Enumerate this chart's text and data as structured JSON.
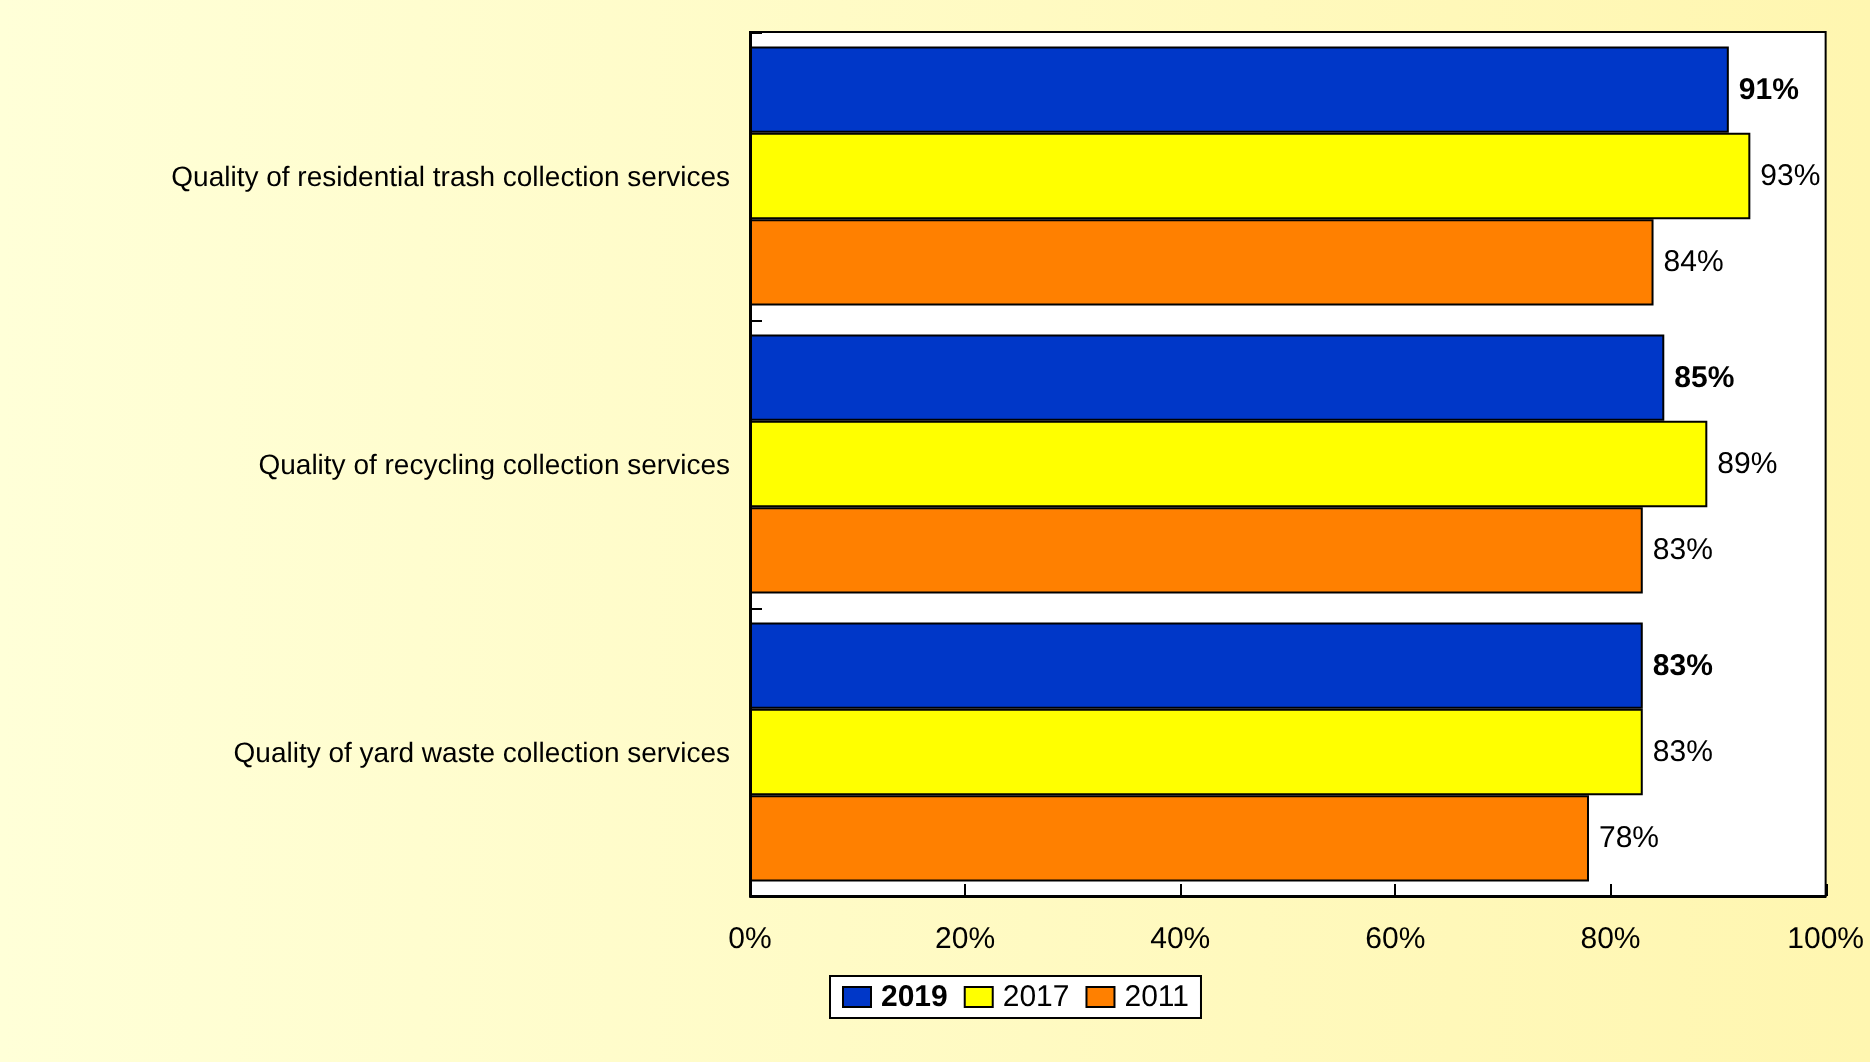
{
  "chart_data": {
    "type": "bar",
    "orientation": "horizontal",
    "categories": [
      "Quality of residential trash collection services",
      "Quality of recycling collection services",
      "Quality of yard waste collection services"
    ],
    "series": [
      {
        "name": "2019",
        "color": "#0037c8",
        "values": [
          91,
          85,
          83
        ],
        "value_labels": [
          "91%",
          "85%",
          "83%"
        ]
      },
      {
        "name": "2017",
        "color": "#ffff00",
        "values": [
          93,
          89,
          83
        ],
        "value_labels": [
          "93%",
          "89%",
          "83%"
        ]
      },
      {
        "name": "2011",
        "color": "#ff8000",
        "values": [
          84,
          83,
          78
        ],
        "value_labels": [
          "84%",
          "83%",
          "78%"
        ]
      }
    ],
    "xlim": [
      0,
      100
    ],
    "xticks": [
      {
        "value": 0,
        "label": "0%"
      },
      {
        "value": 20,
        "label": "20%"
      },
      {
        "value": 40,
        "label": "40%"
      },
      {
        "value": 60,
        "label": "60%"
      },
      {
        "value": 80,
        "label": "80%"
      },
      {
        "value": 100,
        "label": "100%"
      }
    ],
    "grid": false,
    "legend": "bottom"
  }
}
